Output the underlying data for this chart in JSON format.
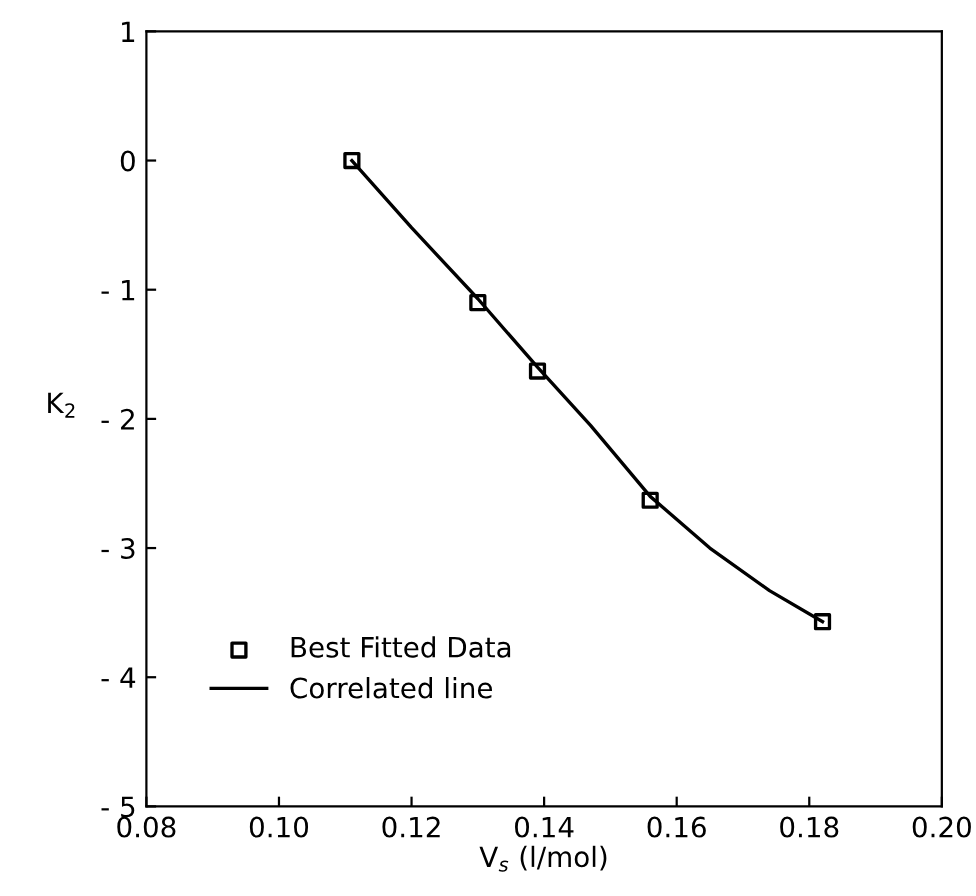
{
  "chart_data": {
    "type": "scatter",
    "xlabel": "V$_{s}$ (l/mol)",
    "ylabel": "K$_{2}$",
    "series": [
      {
        "name": "Best Fitted Data",
        "color": "#000000",
        "marker": "square",
        "x": [
          0.111,
          0.13,
          0.139,
          0.156,
          0.182
        ],
        "values": [
          0.0,
          -1.1,
          -1.63,
          -2.63,
          -3.57
        ]
      },
      {
        "name": "Correlated line",
        "type": "line",
        "color": "#000000",
        "marker": "none",
        "line_style": "solid",
        "x": [
          0.111,
          0.12,
          0.13,
          0.139,
          0.147,
          0.156,
          0.165,
          0.174,
          0.182
        ],
        "values": [
          0.0,
          -0.52,
          -1.07,
          -1.6,
          -2.05,
          -2.6,
          -3.0,
          -3.33,
          -3.57
        ]
      }
    ],
    "xlim": [
      0.08,
      0.2
    ],
    "xticks": [
      {
        "value": 0.08,
        "label": "0.08"
      },
      {
        "value": 0.1,
        "label": "0.10"
      },
      {
        "value": 0.12,
        "label": "0.12"
      },
      {
        "value": 0.14,
        "label": "0.14"
      },
      {
        "value": 0.16,
        "label": "0.16"
      },
      {
        "value": 0.18,
        "label": "0.18"
      },
      {
        "value": 0.2,
        "label": "0.20"
      }
    ],
    "ylim": [
      -5,
      1
    ],
    "yticks": [
      {
        "value": -5,
        "label": "- 5"
      },
      {
        "value": -4,
        "label": "- 4"
      },
      {
        "value": -3,
        "label": "- 3"
      },
      {
        "value": -2,
        "label": "- 2"
      },
      {
        "value": -1,
        "label": "- 1"
      },
      0,
      1
    ],
    "grid": false,
    "legend": "bottom left"
  }
}
